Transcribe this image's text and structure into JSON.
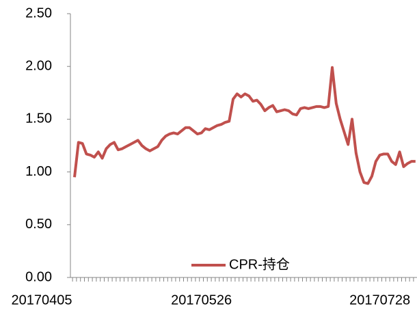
{
  "chart_data": {
    "type": "line",
    "categories": [
      "20170405",
      null,
      null,
      null,
      null,
      null,
      null,
      null,
      null,
      null,
      null,
      null,
      null,
      null,
      null,
      null,
      null,
      null,
      null,
      null,
      null,
      null,
      null,
      null,
      null,
      null,
      null,
      null,
      null,
      null,
      null,
      null,
      "20170526",
      null,
      null,
      null,
      null,
      null,
      null,
      null,
      null,
      null,
      null,
      null,
      null,
      null,
      null,
      null,
      null,
      null,
      null,
      null,
      null,
      null,
      null,
      null,
      null,
      null,
      null,
      null,
      null,
      null,
      null,
      null,
      null,
      null,
      null,
      null,
      null,
      null,
      null,
      null,
      null,
      null,
      null,
      null,
      null,
      "20170728",
      null,
      null,
      null,
      null,
      null,
      null,
      null,
      null,
      null
    ],
    "series": [
      {
        "name": "CPR-持仓",
        "color": "#c0504d",
        "values": [
          0.95,
          1.28,
          1.27,
          1.17,
          1.16,
          1.14,
          1.19,
          1.13,
          1.22,
          1.26,
          1.28,
          1.21,
          1.22,
          1.24,
          1.26,
          1.28,
          1.3,
          1.25,
          1.22,
          1.2,
          1.22,
          1.24,
          1.3,
          1.34,
          1.36,
          1.37,
          1.36,
          1.39,
          1.42,
          1.42,
          1.39,
          1.36,
          1.37,
          1.41,
          1.4,
          1.42,
          1.44,
          1.45,
          1.47,
          1.48,
          1.69,
          1.74,
          1.71,
          1.74,
          1.72,
          1.67,
          1.68,
          1.64,
          1.58,
          1.61,
          1.63,
          1.57,
          1.58,
          1.59,
          1.58,
          1.55,
          1.54,
          1.6,
          1.61,
          1.6,
          1.61,
          1.62,
          1.62,
          1.61,
          1.62,
          1.99,
          1.65,
          1.5,
          1.38,
          1.26,
          1.5,
          1.18,
          1.0,
          0.9,
          0.89,
          0.96,
          1.1,
          1.16,
          1.17,
          1.17,
          1.1,
          1.07,
          1.19,
          1.05,
          1.08,
          1.1,
          1.1
        ]
      }
    ],
    "ylim": [
      0,
      2.5
    ],
    "yticks": [
      {
        "value": 0,
        "label": "0.00"
      },
      {
        "value": 0.5,
        "label": "0.50"
      },
      {
        "value": 1,
        "label": "1.00"
      },
      {
        "value": 1.5,
        "label": "1.50"
      },
      {
        "value": 2,
        "label": "2.00"
      },
      {
        "value": 2.5,
        "label": "2.50"
      }
    ],
    "grid": false,
    "legend": "bottom"
  }
}
